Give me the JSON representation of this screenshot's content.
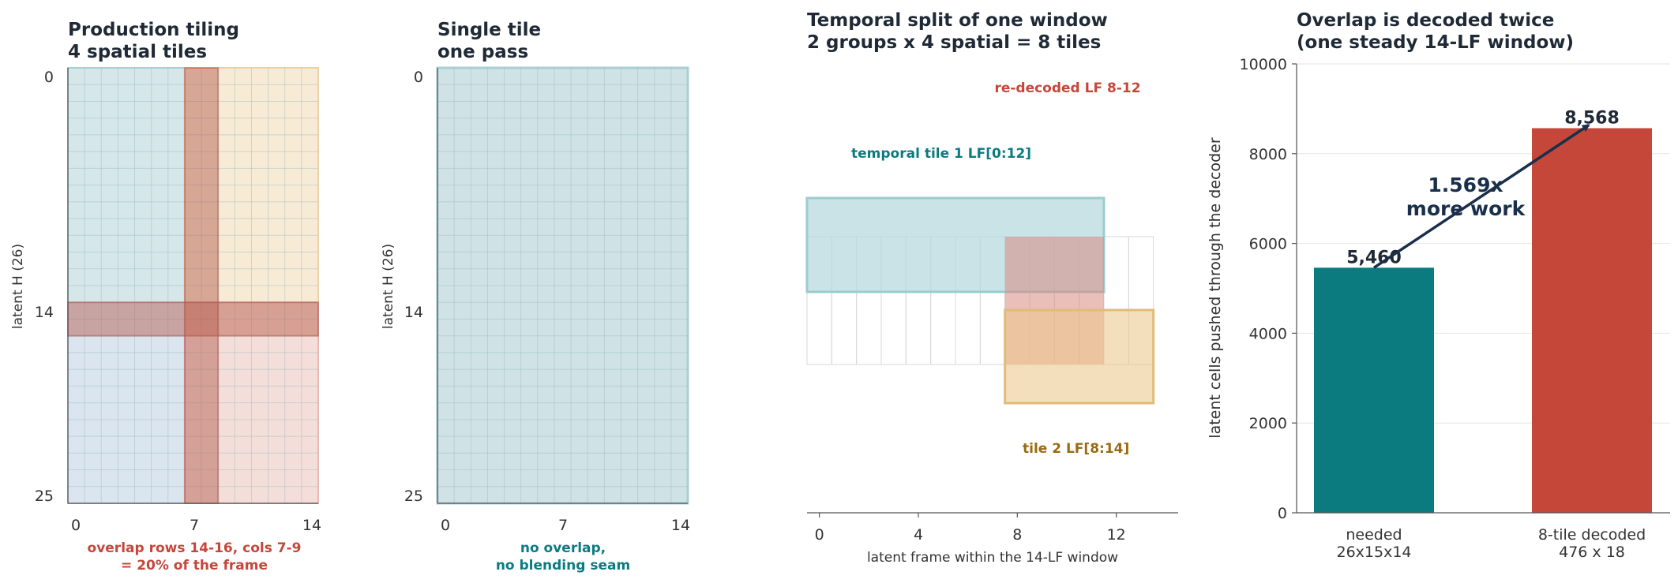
{
  "colors": {
    "teal": "#0b7b80",
    "red": "#c4473a",
    "gold": "#9a6a12",
    "navy": "#1a2f4a",
    "tile_teal_fill": "#cfe3e6",
    "tile_gold_fill": "#f6e8cf",
    "tile_blue_fill": "#d5e0ec",
    "tile_pink_fill": "#f2d8d4"
  },
  "chart_data": [
    {
      "type": "heatmap",
      "title_lines": [
        "Production tiling",
        "4 spatial tiles"
      ],
      "ylabel": "latent H (26)",
      "xticks": [
        "0",
        "7",
        "14"
      ],
      "yticks": [
        "0",
        "14",
        "25"
      ],
      "grid": {
        "cols": 15,
        "rows": 26
      },
      "tiles": [
        {
          "color": "tile_teal_fill",
          "cols": [
            0,
            9
          ],
          "rows": [
            0,
            16
          ]
        },
        {
          "color": "tile_gold_fill",
          "cols": [
            7,
            15
          ],
          "rows": [
            0,
            16
          ]
        },
        {
          "color": "tile_blue_fill",
          "cols": [
            0,
            9
          ],
          "rows": [
            14,
            26
          ]
        },
        {
          "color": "tile_pink_fill",
          "cols": [
            7,
            15
          ],
          "rows": [
            14,
            26
          ]
        }
      ],
      "overlap": {
        "rows": [
          14,
          16
        ],
        "cols": [
          7,
          9
        ]
      },
      "note_lines": [
        "overlap rows 14-16, cols 7-9",
        "= 20% of the frame"
      ]
    },
    {
      "type": "heatmap",
      "title_lines": [
        "Single tile",
        "one pass"
      ],
      "ylabel": "latent H (26)",
      "xticks": [
        "0",
        "7",
        "14"
      ],
      "yticks": [
        "0",
        "14",
        "25"
      ],
      "grid": {
        "cols": 15,
        "rows": 26
      },
      "note_lines": [
        "no overlap,",
        "no blending seam"
      ]
    },
    {
      "type": "bar",
      "title_lines": [
        "Temporal split of one window",
        "2 groups x 4 spatial = 8 tiles"
      ],
      "xlabel": "latent frame within the 14-LF window",
      "xticks": [
        0,
        4,
        8,
        12
      ],
      "xlim": [
        -0.5,
        14.5
      ],
      "window_frames": 14,
      "tiles": [
        {
          "label": "temporal tile 1  LF[0:12]",
          "start": 0,
          "end": 12
        },
        {
          "label": "tile 2  LF[8:14]",
          "start": 8,
          "end": 14
        }
      ],
      "overlap": {
        "label": "re-decoded LF 8-12",
        "start": 8,
        "end": 12
      }
    },
    {
      "type": "bar",
      "title_lines": [
        "Overlap is decoded twice",
        "(one steady 14-LF window)"
      ],
      "ylabel": "latent cells pushed through the decoder",
      "categories": [
        [
          "needed",
          "26x15x14"
        ],
        [
          "8-tile decoded",
          "476 x 18"
        ]
      ],
      "values": [
        5460,
        8568
      ],
      "value_labels": [
        "5,460",
        "8,568"
      ],
      "yticks": [
        "0",
        "2000",
        "4000",
        "6000",
        "8000",
        "10000"
      ],
      "ylim": [
        0,
        10000
      ],
      "annotation_lines": [
        "1.569x",
        "more work"
      ]
    }
  ]
}
